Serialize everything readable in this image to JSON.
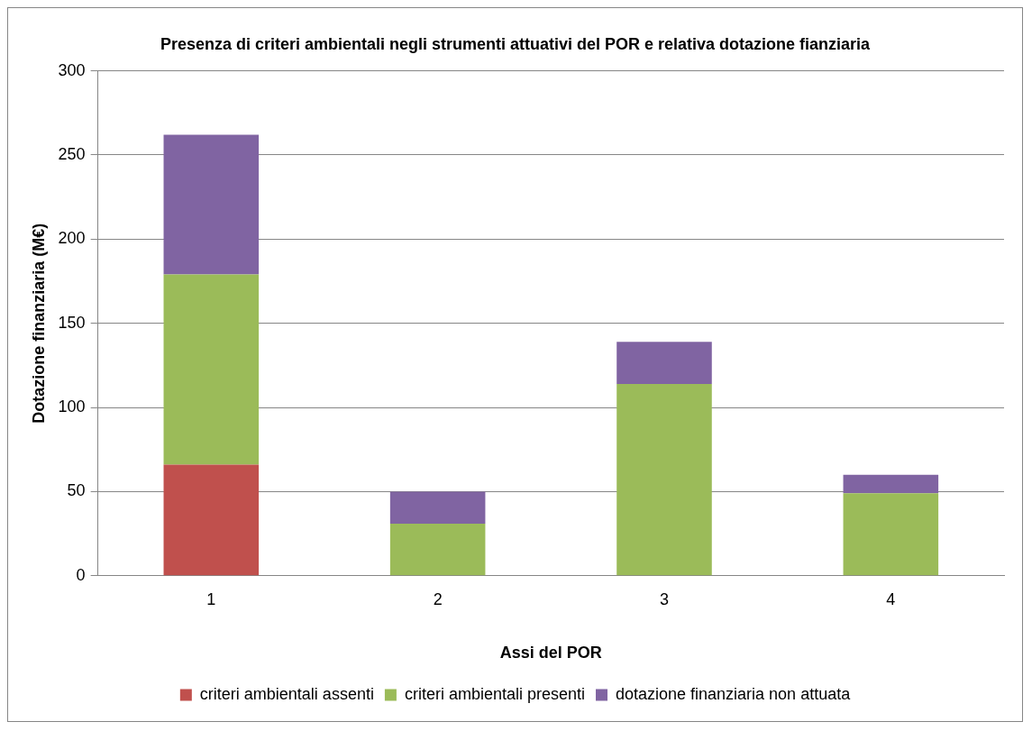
{
  "chart_data": {
    "type": "bar",
    "title": "Presenza di criteri ambientali negli strumenti attuativi del POR e relativa dotazione fianziaria",
    "xlabel": "Assi del POR",
    "ylabel": "Dotazione finanziaria (M€)",
    "categories": [
      "1",
      "2",
      "3",
      "4"
    ],
    "series": [
      {
        "name": "criteri ambientali assenti",
        "color": "#c0504d",
        "values": [
          66,
          0,
          0,
          0
        ]
      },
      {
        "name": "criteri ambientali presenti",
        "color": "#9bbb59",
        "values": [
          113,
          31,
          114,
          49
        ]
      },
      {
        "name": "dotazione finanziaria non attuata",
        "color": "#8064a2",
        "values": [
          83,
          19,
          25,
          11
        ]
      }
    ],
    "stacked": true,
    "ylim": [
      0,
      300
    ],
    "yticks": [
      0,
      50,
      100,
      150,
      200,
      250,
      300
    ],
    "grid": "y",
    "legend": "bottom"
  }
}
